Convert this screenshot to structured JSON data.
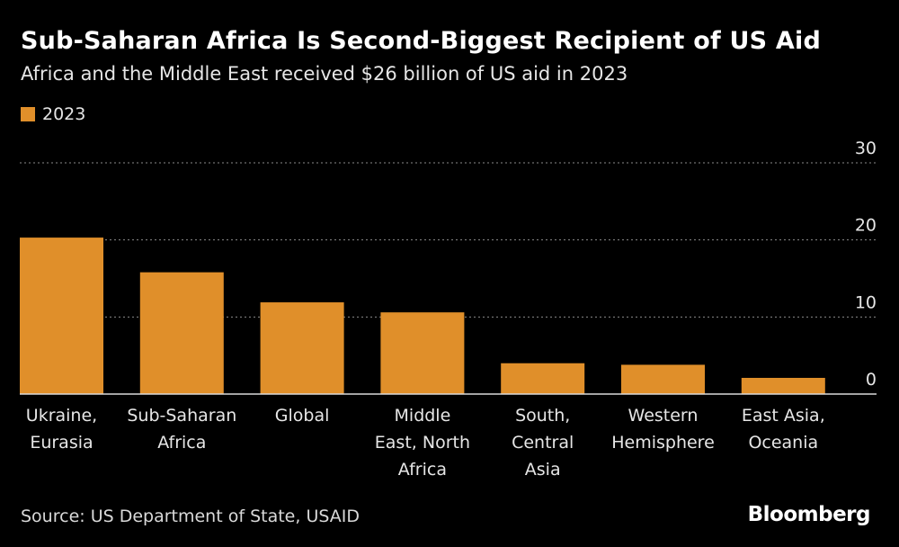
{
  "header": {
    "title": "Sub-Saharan Africa Is Second-Biggest Recipient of US Aid",
    "subtitle": "Africa and the Middle East received $26 billion of US aid in 2023"
  },
  "footer": {
    "source": "Source: US Department of State, USAID",
    "brand": "Bloomberg"
  },
  "colors": {
    "bar": "#E08F2A",
    "grid": "#8a8a8a",
    "axis": "#d9d9d9",
    "text": "#e6e6e6"
  },
  "chart_data": {
    "type": "bar",
    "categories": [
      [
        "Ukraine,",
        "Eurasia"
      ],
      [
        "Sub-Saharan",
        "Africa"
      ],
      [
        "Global"
      ],
      [
        "Middle",
        "East, North",
        "Africa"
      ],
      [
        "South,",
        "Central",
        "Asia"
      ],
      [
        "Western",
        "Hemisphere"
      ],
      [
        "East Asia,",
        "Oceania"
      ]
    ],
    "series": [
      {
        "name": "2023",
        "values": [
          20.3,
          15.8,
          11.9,
          10.6,
          4.0,
          3.8,
          2.1
        ]
      }
    ],
    "ylim": [
      0,
      30
    ],
    "yticks": [
      0,
      10,
      20,
      30
    ],
    "y_axis_side": "right",
    "grid": true,
    "legend": "top-left"
  }
}
